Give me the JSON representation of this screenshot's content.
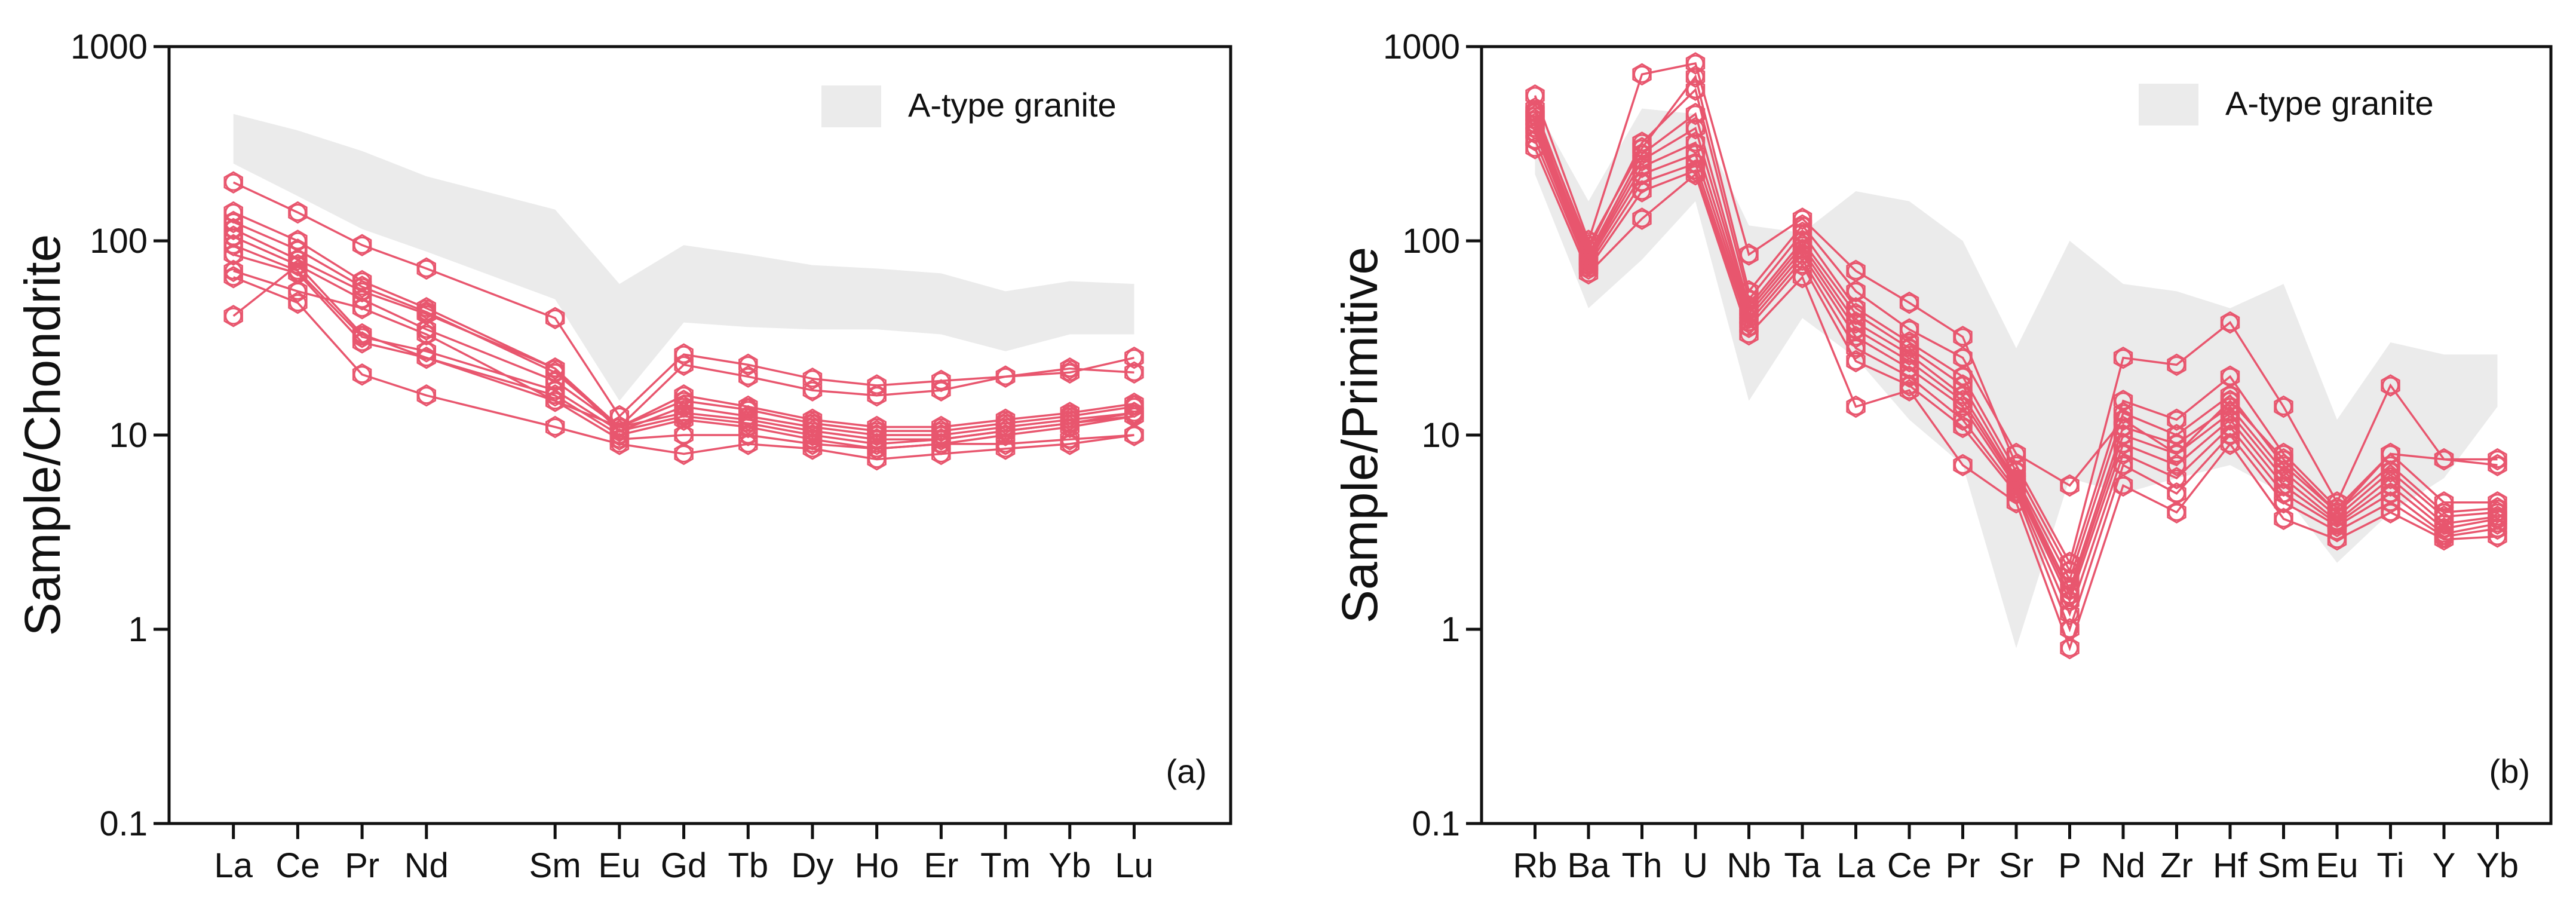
{
  "colors": {
    "series": "#e8566e",
    "envelope": "#ebebeb",
    "axis": "#111111"
  },
  "chart_data": [
    {
      "id": "a",
      "type": "line",
      "panel_label": "(a)",
      "ylabel": "Sample/Chondrite",
      "xlabel": "",
      "yscale": "log",
      "ylim": [
        0.1,
        1000
      ],
      "yticks": [
        {
          "v": 0.1,
          "label": "0.1"
        },
        {
          "v": 1,
          "label": "1"
        },
        {
          "v": 10,
          "label": "10"
        },
        {
          "v": 100,
          "label": "100"
        },
        {
          "v": 1000,
          "label": "1000"
        }
      ],
      "categories": [
        "La",
        "Ce",
        "Pr",
        "Nd",
        "Sm",
        "Eu",
        "Gd",
        "Tb",
        "Dy",
        "Ho",
        "Er",
        "Tm",
        "Yb",
        "Lu"
      ],
      "x_positions": [
        1,
        2,
        3,
        4,
        6,
        7,
        8,
        9,
        10,
        11,
        12,
        13,
        14,
        15
      ],
      "xlim": [
        0,
        16.5
      ],
      "legend": {
        "label": "A-type granite",
        "position": "top-right"
      },
      "envelope": {
        "upper": [
          450,
          370,
          290,
          215,
          145,
          60,
          95,
          85,
          75,
          72,
          68,
          55,
          62,
          60
        ],
        "lower": [
          250,
          170,
          115,
          88,
          50,
          15,
          38,
          36,
          35,
          35,
          33,
          27,
          33,
          33
        ]
      },
      "series": [
        {
          "name": "s1",
          "values": [
            200,
            140,
            95,
            72,
            40,
            12.5,
            26,
            23,
            19.5,
            18,
            19,
            20,
            21,
            25
          ]
        },
        {
          "name": "s2",
          "values": [
            140,
            100,
            62,
            45,
            22,
            11,
            16,
            14,
            12,
            11,
            11,
            12,
            13,
            14.5
          ]
        },
        {
          "name": "s3",
          "values": [
            125,
            90,
            58,
            43,
            21,
            11,
            15,
            13.5,
            11.5,
            10.5,
            10.5,
            11.5,
            12.5,
            14
          ]
        },
        {
          "name": "s4",
          "values": [
            115,
            80,
            55,
            42,
            22,
            10.5,
            14,
            12.5,
            11,
            10,
            10,
            11,
            12,
            13
          ]
        },
        {
          "name": "s5",
          "values": [
            105,
            75,
            50,
            35,
            19,
            11,
            13,
            12,
            10.5,
            9.5,
            9.5,
            10.5,
            11.5,
            13
          ]
        },
        {
          "name": "s6",
          "values": [
            95,
            70,
            32,
            27,
            17,
            10.5,
            12.5,
            11.5,
            10,
            9,
            9.5,
            10.5,
            11.5,
            12.5
          ]
        },
        {
          "name": "s7",
          "values": [
            85,
            68,
            30,
            25,
            16,
            10,
            12,
            11,
            9.5,
            8.5,
            9,
            10,
            11,
            12.5
          ]
        },
        {
          "name": "s8",
          "values": [
            70,
            55,
            45,
            33,
            15,
            11,
            23,
            20,
            17,
            16,
            17,
            20,
            22,
            21
          ]
        },
        {
          "name": "s9",
          "values": [
            65,
            48,
            20.5,
            16,
            11,
            9,
            8,
            9,
            8.5,
            7.5,
            8,
            8.5,
            9,
            10
          ]
        },
        {
          "name": "s10",
          "values": [
            41,
            75,
            33,
            25,
            15,
            9.5,
            10,
            10,
            9,
            8.5,
            9,
            9,
            9.5,
            10
          ]
        }
      ]
    },
    {
      "id": "b",
      "type": "line",
      "panel_label": "(b)",
      "ylabel": "Sample/Primitive",
      "xlabel": "",
      "yscale": "log",
      "ylim": [
        0.1,
        1000
      ],
      "yticks": [
        {
          "v": 0.1,
          "label": "0.1"
        },
        {
          "v": 1,
          "label": "1"
        },
        {
          "v": 10,
          "label": "10"
        },
        {
          "v": 100,
          "label": "100"
        },
        {
          "v": 1000,
          "label": "1000"
        }
      ],
      "categories": [
        "Rb",
        "Ba",
        "Th",
        "U",
        "Nb",
        "Ta",
        "La",
        "Ce",
        "Pr",
        "Sr",
        "P",
        "Nd",
        "Zr",
        "Hf",
        "Sm",
        "Eu",
        "Ti",
        "Y",
        "Yb"
      ],
      "x_positions": [
        1,
        2,
        3,
        4,
        5,
        6,
        7,
        8,
        9,
        10,
        11,
        12,
        13,
        14,
        15,
        16,
        17,
        18,
        19
      ],
      "xlim": [
        0,
        20
      ],
      "legend": {
        "label": "A-type granite",
        "position": "top-right"
      },
      "envelope": {
        "upper": [
          500,
          160,
          480,
          450,
          120,
          110,
          180,
          160,
          100,
          28,
          100,
          60,
          55,
          45,
          60,
          12,
          30,
          26,
          26
        ],
        "lower": [
          220,
          45,
          80,
          160,
          15,
          40,
          25,
          12,
          7,
          0.8,
          6,
          5,
          6,
          7,
          5,
          2.2,
          4,
          6,
          14
        ]
      },
      "series": [
        {
          "name": "s1",
          "values": [
            560,
            100,
            720,
            820,
            85,
            130,
            70,
            48,
            32,
            7,
            2.2,
            25,
            23,
            38,
            14,
            4.5,
            18,
            7.5,
            7.5
          ]
        },
        {
          "name": "s2",
          "values": [
            480,
            90,
            320,
            600,
            50,
            110,
            45,
            30,
            20,
            6.5,
            2,
            15,
            12,
            20,
            8,
            4.2,
            8,
            4.5,
            4.5
          ]
        },
        {
          "name": "s3",
          "values": [
            440,
            85,
            280,
            450,
            46,
            100,
            42,
            28,
            18,
            6,
            1.8,
            13,
            10,
            16,
            7,
            4,
            7,
            4,
            4.2
          ]
        },
        {
          "name": "s4",
          "values": [
            420,
            82,
            260,
            380,
            44,
            95,
            38,
            26,
            16,
            5.8,
            1.6,
            11,
            9,
            14,
            6.5,
            3.8,
            6.5,
            3.8,
            4
          ]
        },
        {
          "name": "s5",
          "values": [
            400,
            80,
            240,
            320,
            42,
            90,
            35,
            24,
            15,
            5.6,
            1.5,
            10,
            8,
            13,
            6,
            3.6,
            6,
            3.5,
            3.8
          ]
        },
        {
          "name": "s6",
          "values": [
            380,
            78,
            220,
            280,
            40,
            85,
            32,
            22,
            14,
            5.4,
            1.4,
            9,
            7,
            12,
            5.5,
            3.5,
            5.5,
            3.3,
            3.7
          ]
        },
        {
          "name": "s7",
          "values": [
            360,
            75,
            200,
            250,
            38,
            80,
            28,
            20,
            12,
            5.2,
            1.2,
            8,
            6,
            11,
            5,
            3.4,
            5,
            3.1,
            3.5
          ]
        },
        {
          "name": "s8",
          "values": [
            330,
            72,
            180,
            230,
            36,
            75,
            24,
            18,
            11,
            5,
            1,
            7,
            5,
            10,
            4.5,
            3.2,
            4.5,
            3,
            3.3
          ]
        },
        {
          "name": "s9",
          "values": [
            300,
            68,
            130,
            220,
            33,
            65,
            14,
            17,
            7,
            4.5,
            0.8,
            5.5,
            4,
            9,
            3.7,
            2.9,
            4,
            2.9,
            3
          ]
        },
        {
          "name": "s10",
          "values": [
            460,
            95,
            300,
            700,
            55,
            120,
            55,
            35,
            25,
            8,
            5.5,
            12,
            8,
            15,
            7.5,
            4,
            8,
            7.5,
            7
          ]
        }
      ]
    }
  ]
}
